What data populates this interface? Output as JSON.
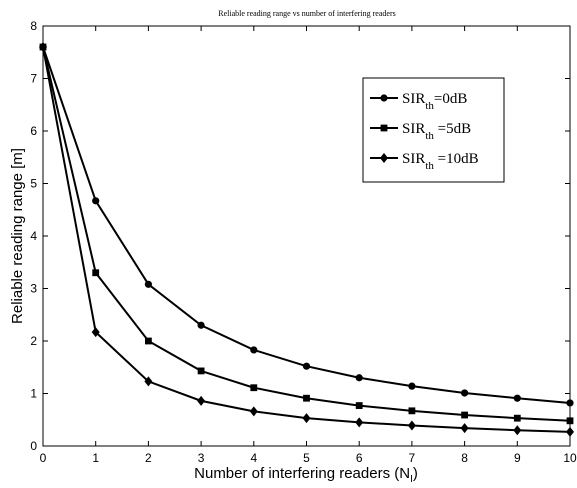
{
  "chart_data": {
    "type": "line",
    "title": "Reliable reading range vs number of interfering readers",
    "xlabel": "Number of interfering readers (N",
    "xlabel_sub": "I",
    "xlabel_close": ")",
    "ylabel": "Reliable reading range [m]",
    "xlim": [
      0,
      10
    ],
    "ylim": [
      0,
      8
    ],
    "xticks": [
      0,
      1,
      2,
      3,
      4,
      5,
      6,
      7,
      8,
      9,
      10
    ],
    "yticks": [
      0,
      1,
      2,
      3,
      4,
      5,
      6,
      7,
      8
    ],
    "grid": false,
    "legend_position": "top-right",
    "x": [
      0,
      1,
      2,
      3,
      4,
      5,
      6,
      7,
      8,
      9,
      10
    ],
    "series": [
      {
        "name_main": "SIR",
        "name_sub": "th",
        "name_rest": "=0dB",
        "marker": "circle",
        "values": [
          7.6,
          4.67,
          3.08,
          2.3,
          1.83,
          1.52,
          1.3,
          1.14,
          1.01,
          0.91,
          0.82
        ]
      },
      {
        "name_main": "SIR",
        "name_sub": "th",
        "name_rest": " =5dB",
        "marker": "square",
        "values": [
          7.6,
          3.3,
          2.0,
          1.43,
          1.11,
          0.91,
          0.77,
          0.67,
          0.59,
          0.53,
          0.48
        ]
      },
      {
        "name_main": "SIR",
        "name_sub": "th",
        "name_rest": " =10dB",
        "marker": "diamond",
        "values": [
          7.6,
          2.17,
          1.23,
          0.86,
          0.66,
          0.53,
          0.45,
          0.39,
          0.34,
          0.3,
          0.27
        ]
      }
    ],
    "line_color": "#000000"
  }
}
